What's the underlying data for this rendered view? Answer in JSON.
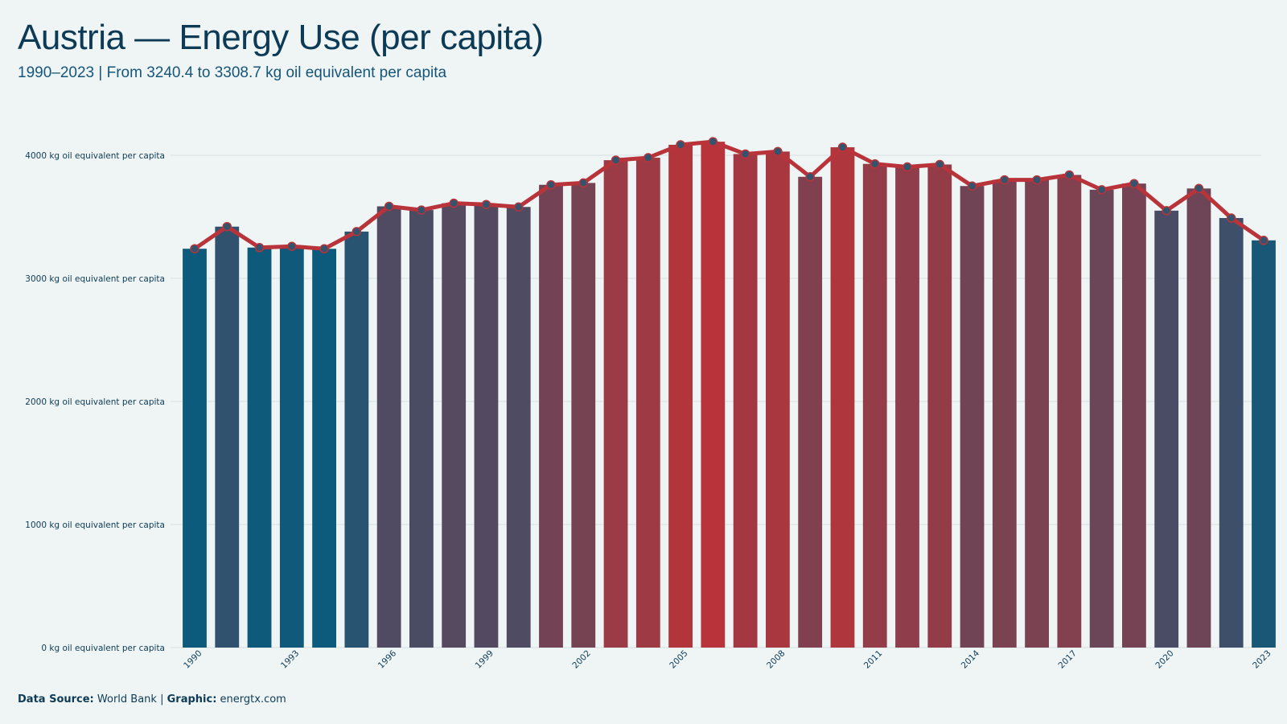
{
  "header": {
    "title": "Austria — Energy Use (per capita)",
    "subtitle": "1990–2023 | From 3240.4 to 3308.7 kg oil equivalent per capita"
  },
  "caption": {
    "source_label": "Data Source:",
    "source_value": "World Bank",
    "separator": "|",
    "graphic_label": "Graphic:",
    "graphic_value": "energtx.com"
  },
  "colors": {
    "background": "#eff5f5",
    "low": "#0c5a7c",
    "high": "#b8343a",
    "line": "#b8343a",
    "point_fill": "#34536d",
    "grid": "#d6dfe2",
    "text": "#0d3b56"
  },
  "chart_data": {
    "type": "bar",
    "title": "Austria — Energy Use (per capita)",
    "xlabel": "",
    "ylabel": "",
    "ylim": [
      0,
      4000
    ],
    "yticks": [
      {
        "value": 0,
        "label": "0 kg oil equivalent per capita"
      },
      {
        "value": 1000,
        "label": "1000 kg oil equivalent per capita"
      },
      {
        "value": 2000,
        "label": "2000 kg oil equivalent per capita"
      },
      {
        "value": 3000,
        "label": "3000 kg oil equivalent per capita"
      },
      {
        "value": 4000,
        "label": "4000 kg oil equivalent per capita"
      }
    ],
    "xtick_labels": [
      "1990",
      "1993",
      "1996",
      "1999",
      "2002",
      "2005",
      "2008",
      "2011",
      "2014",
      "2017",
      "2020",
      "2023"
    ],
    "grid": true,
    "overlay": "line with points",
    "categories": [
      "1990",
      "1991",
      "1992",
      "1993",
      "1994",
      "1995",
      "1996",
      "1997",
      "1998",
      "1999",
      "2000",
      "2001",
      "2002",
      "2003",
      "2004",
      "2005",
      "2006",
      "2007",
      "2008",
      "2009",
      "2010",
      "2011",
      "2012",
      "2013",
      "2014",
      "2015",
      "2016",
      "2017",
      "2018",
      "2019",
      "2020",
      "2021",
      "2022",
      "2023"
    ],
    "values": [
      3240.4,
      3420,
      3250,
      3260,
      3240,
      3380,
      3585,
      3555,
      3610,
      3600,
      3580,
      3760,
      3775,
      3960,
      3980,
      4085,
      4110,
      4010,
      4030,
      3825,
      4065,
      3930,
      3905,
      3925,
      3750,
      3800,
      3800,
      3840,
      3720,
      3770,
      3550,
      3730,
      3490,
      3308.7
    ]
  }
}
